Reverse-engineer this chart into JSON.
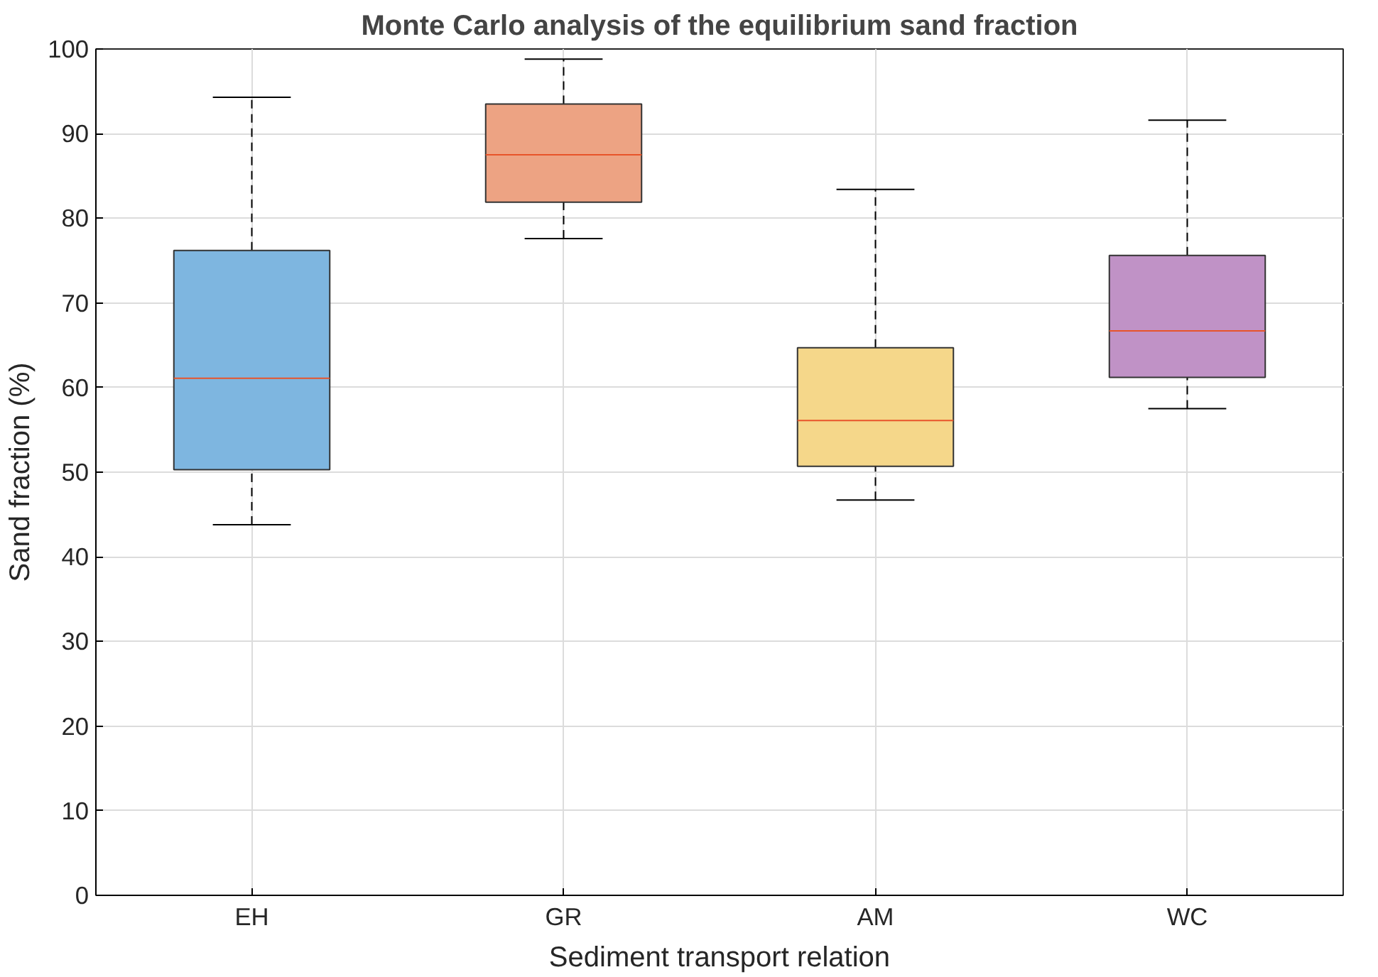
{
  "chart_data": {
    "type": "box",
    "title": "Monte Carlo analysis of the equilibrium sand fraction",
    "xlabel": "Sediment transport relation",
    "ylabel": "Sand fraction (%)",
    "categories": [
      "EH",
      "GR",
      "AM",
      "WC"
    ],
    "colors": [
      "#7eb6e0",
      "#eda383",
      "#f5d78a",
      "#c092c6"
    ],
    "boxes": [
      {
        "low": 43.8,
        "q1": 50.3,
        "median": 61.1,
        "q3": 76.2,
        "high": 94.3
      },
      {
        "low": 77.6,
        "q1": 81.9,
        "median": 87.5,
        "q3": 93.5,
        "high": 98.8
      },
      {
        "low": 46.7,
        "q1": 50.7,
        "median": 56.1,
        "q3": 64.7,
        "high": 83.4
      },
      {
        "low": 57.5,
        "q1": 61.2,
        "median": 66.7,
        "q3": 75.6,
        "high": 91.6
      }
    ],
    "ylim": [
      0,
      100
    ],
    "yticks": [
      0,
      10,
      20,
      30,
      40,
      50,
      60,
      70,
      80,
      90,
      100
    ],
    "grid": true,
    "line_style": "dashed"
  }
}
